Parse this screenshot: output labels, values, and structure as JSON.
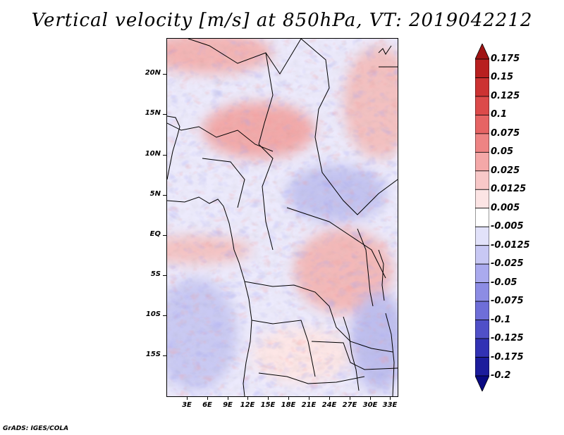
{
  "title": "Vertical velocity [m/s] at 850hPa, VT: 2019042212",
  "footer": "GrADS: IGES/COLA",
  "chart_data": {
    "type": "heatmap",
    "title": "Vertical velocity [m/s] at 850hPa, VT: 2019042212",
    "variable": "Vertical velocity",
    "units": "m/s",
    "level": "850hPa",
    "valid_time": "2019042212",
    "lon_range": [
      0,
      34
    ],
    "lat_range": [
      -20,
      24.5
    ],
    "x_ticks": [
      "3E",
      "6E",
      "9E",
      "12E",
      "15E",
      "18E",
      "21E",
      "24E",
      "27E",
      "30E",
      "33E"
    ],
    "x_tick_values": [
      3,
      6,
      9,
      12,
      15,
      18,
      21,
      24,
      27,
      30,
      33
    ],
    "y_ticks": [
      "20N",
      "15N",
      "10N",
      "5N",
      "EQ",
      "5S",
      "10S",
      "15S"
    ],
    "y_tick_values": [
      20,
      15,
      10,
      5,
      0,
      -5,
      -10,
      -15
    ],
    "colorbar": {
      "labels": [
        "0.175",
        "0.15",
        "0.125",
        "0.1",
        "0.075",
        "0.05",
        "0.025",
        "0.0125",
        "0.005",
        "-0.005",
        "-0.0125",
        "-0.025",
        "-0.05",
        "-0.075",
        "-0.1",
        "-0.125",
        "-0.175",
        "-0.2"
      ],
      "colors": [
        "#a01414",
        "#b82020",
        "#cc3232",
        "#dc4a4a",
        "#e66464",
        "#ee8484",
        "#f4a8a8",
        "#f8c8c8",
        "#fce4e4",
        "#ffffff",
        "#e2e2fa",
        "#c8c8f4",
        "#aaaaee",
        "#8c8ce4",
        "#6e6ed8",
        "#5050c8",
        "#3232b4",
        "#1c1c9c",
        "#0a0a82"
      ]
    }
  }
}
